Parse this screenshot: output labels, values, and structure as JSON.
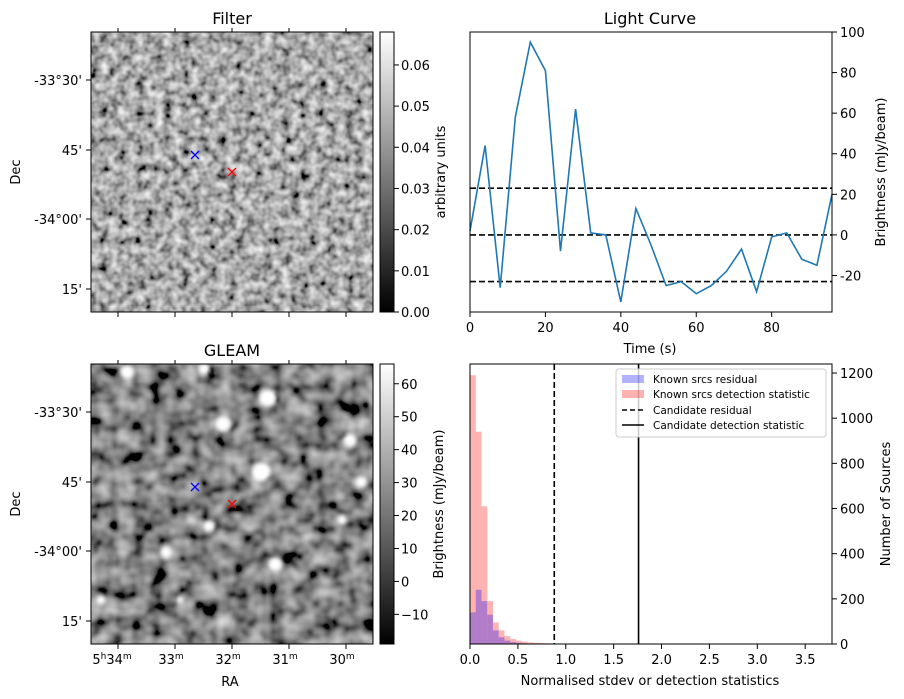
{
  "chart_data": [
    {
      "type": "heatmap",
      "title": "Filter",
      "ylabel": "Dec",
      "xlabel": "",
      "colorbar_label": "arbitrary units",
      "colormap": "gray",
      "colorbar_ticks": [
        "0.00",
        "0.01",
        "0.02",
        "0.03",
        "0.04",
        "0.05",
        "0.06"
      ],
      "colorbar_range": [
        0.0,
        0.068
      ],
      "y_tick_labels": [
        "-33°30'",
        "45'",
        "-34°00'",
        "15'"
      ],
      "markers": [
        {
          "symbol": "x",
          "color": "#0000ff",
          "ra": "5h32m22s",
          "dec": "-33°46'"
        },
        {
          "symbol": "x",
          "color": "#ff0000",
          "ra": "5h31m50s",
          "dec": "-33°51'"
        }
      ]
    },
    {
      "type": "line",
      "title": "Light Curve",
      "xlabel": "Time (s)",
      "ylabel": "Brightness (mJy/beam)",
      "xlim": [
        0,
        96
      ],
      "ylim": [
        -38,
        100
      ],
      "x_ticks": [
        "0",
        "20",
        "40",
        "60",
        "80"
      ],
      "y_ticks": [
        "-20",
        "0",
        "20",
        "40",
        "60",
        "80",
        "100"
      ],
      "color": "#1f77b4",
      "x": [
        0,
        4,
        8,
        12,
        16,
        20,
        24,
        28,
        32,
        36,
        40,
        44,
        48,
        52,
        56,
        60,
        64,
        68,
        72,
        76,
        80,
        84,
        88,
        92,
        96
      ],
      "y": [
        2,
        44,
        -26,
        58,
        95,
        81,
        -8,
        62,
        1,
        0,
        -33,
        13,
        -5,
        -25,
        -23,
        -29,
        -25,
        -18,
        -7,
        -28,
        -1,
        1,
        -12,
        -15,
        20
      ],
      "hlines": [
        23,
        0,
        -23
      ],
      "hline_style": "dashed"
    },
    {
      "type": "heatmap",
      "title": "GLEAM",
      "xlabel": "RA",
      "ylabel": "Dec",
      "colorbar_label": "Brightness (mJy/beam)",
      "colormap": "gray",
      "colorbar_ticks": [
        "−10",
        "0",
        "10",
        "20",
        "30",
        "40",
        "50",
        "60"
      ],
      "colorbar_range": [
        -19,
        66
      ],
      "y_tick_labels": [
        "-33°30'",
        "45'",
        "-34°00'",
        "15'"
      ],
      "x_tick_labels": [
        {
          "main": "5",
          "sup1": "h",
          "mid": "34",
          "sup2": "m"
        },
        {
          "main": "33",
          "sup1": "m",
          "mid": "",
          "sup2": ""
        },
        {
          "main": "32",
          "sup1": "m",
          "mid": "",
          "sup2": ""
        },
        {
          "main": "31",
          "sup1": "m",
          "mid": "",
          "sup2": ""
        },
        {
          "main": "30",
          "sup1": "m",
          "mid": "",
          "sup2": ""
        }
      ],
      "markers": [
        {
          "symbol": "x",
          "color": "#0000ff",
          "ra": "5h32m22s",
          "dec": "-33°46'"
        },
        {
          "symbol": "x",
          "color": "#ff0000",
          "ra": "5h31m50s",
          "dec": "-33°51'"
        }
      ]
    },
    {
      "type": "bar",
      "subtype": "histogram",
      "xlabel": "Normalised stdev or detection statistics",
      "ylabel": "Number of Sources",
      "left_ylabel": "Brightness (mJy/beam)",
      "xlim": [
        0,
        3.78
      ],
      "ylim": [
        0,
        1240
      ],
      "x_ticks": [
        "0.0",
        "0.5",
        "1.0",
        "1.5",
        "2.0",
        "2.5",
        "3.0",
        "3.5"
      ],
      "y_ticks": [
        "0",
        "200",
        "400",
        "600",
        "800",
        "1000",
        "1200"
      ],
      "bin_width": 0.06,
      "series": [
        {
          "name": "Known srcs detection statistic",
          "color": "#ff0000",
          "alpha": 0.3,
          "values": [
            1190,
            940,
            610,
            190,
            95,
            60,
            35,
            22,
            15,
            10,
            7,
            5,
            4,
            3,
            2,
            2,
            2,
            1,
            1,
            1,
            1,
            1,
            1,
            0,
            0,
            0,
            0,
            0,
            0,
            0,
            0,
            0,
            0,
            1,
            0,
            0,
            0,
            0,
            0,
            0,
            0,
            0,
            0,
            0,
            0,
            0,
            0,
            0,
            0,
            0,
            0,
            0,
            0,
            0,
            0,
            0,
            0,
            0,
            0,
            0,
            0,
            0,
            1
          ]
        },
        {
          "name": "Known srcs residual",
          "color": "#0000ff",
          "alpha": 0.3,
          "values": [
            140,
            240,
            190,
            130,
            60,
            30,
            15,
            8,
            5,
            3,
            2,
            1,
            1
          ]
        }
      ],
      "vlines": [
        {
          "name": "Candidate residual",
          "x": 0.88,
          "style": "dashed"
        },
        {
          "name": "Candidate detection statistic",
          "x": 1.76,
          "style": "solid"
        }
      ]
    }
  ]
}
